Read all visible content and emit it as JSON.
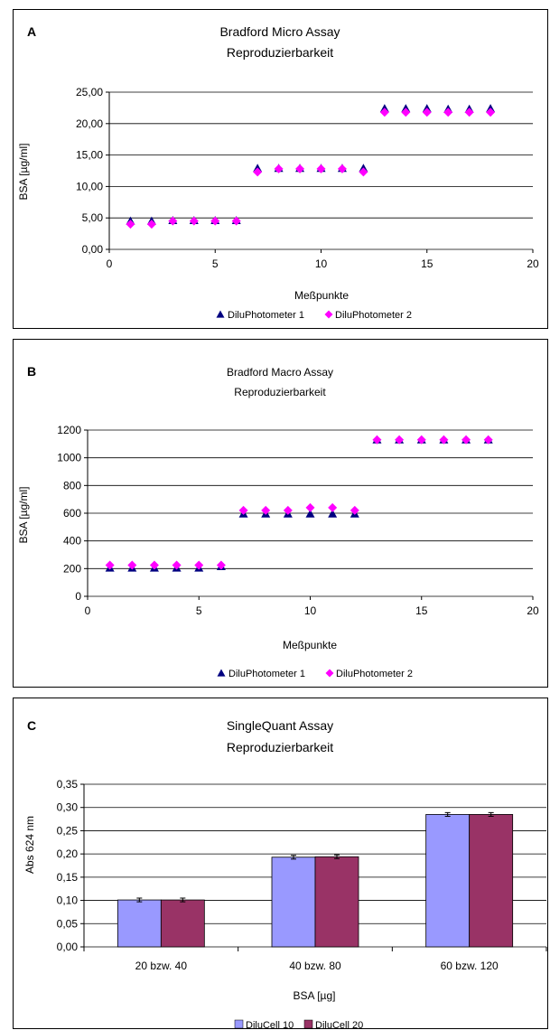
{
  "colors": {
    "panel_border": "#000000",
    "plot_bg": "#ffffff",
    "gridline": "#000000",
    "series_photometer1": "#000080",
    "series_photometer2": "#ff00ff",
    "bar_dilucell10": "#9999ff",
    "bar_dilucell20": "#993366"
  },
  "chart_data": [
    {
      "panel_label": "A",
      "type": "scatter",
      "title": "Bradford Micro Assay",
      "subtitle": "Reproduzierbarkeit",
      "xlabel": "Meßpunkte",
      "ylabel": "BSA [µg/ml]",
      "xlim": [
        0,
        20
      ],
      "ylim": [
        0,
        25
      ],
      "xticks": [
        0,
        5,
        10,
        15,
        20
      ],
      "yticks": [
        "0,00",
        "5,00",
        "10,00",
        "15,00",
        "20,00",
        "25,00"
      ],
      "grid": "horizontal",
      "legend_position": "bottom",
      "series": [
        {
          "name": "DiluPhotometer 1",
          "marker": "triangle",
          "x": [
            1,
            2,
            3,
            4,
            5,
            6,
            7,
            8,
            9,
            10,
            11,
            12,
            13,
            14,
            15,
            16,
            17,
            18
          ],
          "y": [
            4.5,
            4.5,
            4.6,
            4.6,
            4.6,
            4.6,
            12.9,
            12.9,
            12.9,
            12.9,
            12.9,
            12.9,
            22.4,
            22.4,
            22.4,
            22.3,
            22.3,
            22.4
          ]
        },
        {
          "name": "DiluPhotometer 2",
          "marker": "diamond",
          "x": [
            1,
            2,
            3,
            4,
            5,
            6,
            7,
            8,
            9,
            10,
            11,
            12,
            13,
            14,
            15,
            16,
            17,
            18
          ],
          "y": [
            4.0,
            4.0,
            4.5,
            4.5,
            4.5,
            4.5,
            12.3,
            12.8,
            12.8,
            12.8,
            12.8,
            12.3,
            21.8,
            21.8,
            21.8,
            21.8,
            21.8,
            21.8
          ]
        }
      ]
    },
    {
      "panel_label": "B",
      "type": "scatter",
      "title": "Bradford Macro Assay",
      "subtitle": "Reproduzierbarkeit",
      "xlabel": "Meßpunkte",
      "ylabel": "BSA [µg/ml]",
      "xlim": [
        0,
        20
      ],
      "ylim": [
        0,
        1200
      ],
      "xticks": [
        0,
        5,
        10,
        15,
        20
      ],
      "yticks": [
        "0",
        "200",
        "400",
        "600",
        "800",
        "1000",
        "1200"
      ],
      "grid": "horizontal",
      "legend_position": "bottom",
      "series": [
        {
          "name": "DiluPhotometer 1",
          "marker": "triangle",
          "x": [
            1,
            2,
            3,
            4,
            5,
            6,
            7,
            8,
            9,
            10,
            11,
            12,
            13,
            14,
            15,
            16,
            17,
            18
          ],
          "y": [
            205,
            205,
            205,
            205,
            205,
            215,
            595,
            595,
            595,
            595,
            595,
            595,
            1130,
            1130,
            1130,
            1130,
            1130,
            1130
          ]
        },
        {
          "name": "DiluPhotometer 2",
          "marker": "diamond",
          "x": [
            1,
            2,
            3,
            4,
            5,
            6,
            7,
            8,
            9,
            10,
            11,
            12,
            13,
            14,
            15,
            16,
            17,
            18
          ],
          "y": [
            225,
            225,
            225,
            225,
            225,
            225,
            620,
            620,
            620,
            640,
            640,
            620,
            1130,
            1130,
            1130,
            1130,
            1130,
            1130
          ]
        }
      ]
    },
    {
      "panel_label": "C",
      "type": "bar",
      "title": "SingleQuant Assay",
      "subtitle": "Reproduzierbarkeit",
      "xlabel": "BSA [µg]",
      "ylabel": "Abs 624 nm",
      "categories": [
        "20 bzw. 40",
        "40 bzw. 80",
        "60 bzw. 120"
      ],
      "ylim": [
        0,
        0.35
      ],
      "yticks": [
        "0,00",
        "0,05",
        "0,10",
        "0,15",
        "0,20",
        "0,25",
        "0,30",
        "0,35"
      ],
      "grid": "horizontal",
      "legend_position": "bottom",
      "series": [
        {
          "name": "DiluCell 10",
          "values": [
            0.101,
            0.193,
            0.285
          ],
          "errors": [
            0.004,
            0.004,
            0.004
          ]
        },
        {
          "name": "DiluCell 20",
          "values": [
            0.101,
            0.194,
            0.285
          ],
          "errors": [
            0.004,
            0.004,
            0.004
          ]
        }
      ]
    }
  ]
}
